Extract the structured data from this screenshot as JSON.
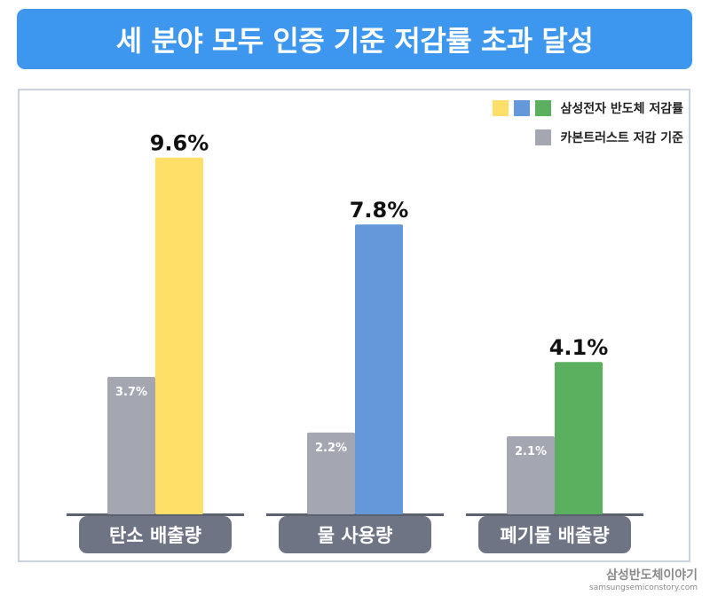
{
  "title": "세 분야 모두 인증 기준 저감률 초과 달성",
  "legend": {
    "samsung_label": "삼성전자 반도체 저감률",
    "carbon_trust_label": "카본트러스트 저감 기준",
    "samsung_swatch_colors": [
      "#ffdf67",
      "#6399da",
      "#5bb05f"
    ],
    "carbon_trust_swatch_color": "#a4a7b2"
  },
  "colors": {
    "banner": "#3d97ee",
    "standard_bar": "#a4a7b2",
    "category_pill": "#6f7485",
    "baseline": "#5c6170",
    "panel_border": "#c9d3df"
  },
  "watermark": {
    "main": "삼성반도체이야기",
    "sub": "samsungsemiconstory.com"
  },
  "chart_data": {
    "type": "bar",
    "categories": [
      "탄소 배출량",
      "물 사용량",
      "폐기물 배출량"
    ],
    "unit": "%",
    "series": [
      {
        "name": "카본트러스트 저감 기준",
        "values": [
          3.7,
          2.2,
          2.1
        ],
        "labels": [
          "3.7%",
          "2.2%",
          "2.1%"
        ],
        "color": "#a4a7b2"
      },
      {
        "name": "삼성전자 반도체 저감률",
        "values": [
          9.6,
          7.8,
          4.1
        ],
        "labels": [
          "9.6%",
          "7.8%",
          "4.1%"
        ],
        "colors": [
          "#ffdf67",
          "#6399da",
          "#5bb05f"
        ]
      }
    ],
    "ylim": [
      0,
      10.5
    ],
    "grid": false,
    "legend_position": "top-right"
  }
}
